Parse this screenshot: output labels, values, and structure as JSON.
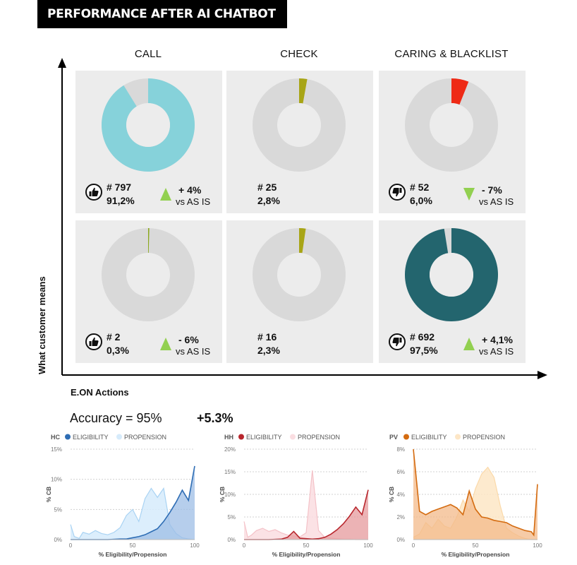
{
  "header": {
    "title": "PERFORMANCE AFTER AI CHATBOT"
  },
  "columns": [
    "CALL",
    "CHECK",
    "CARING & BLACKLIST"
  ],
  "y_axis_label": "What customer means",
  "panels": [
    {
      "count": "# 797",
      "pct": "91,2%",
      "share": 0.912,
      "color": "#86d2da",
      "icon": "thumbs-up-icon",
      "delta": "+ 4%",
      "delta_sub": "vs AS IS",
      "arrow": "up"
    },
    {
      "count": "# 25",
      "pct": "2,8%",
      "share": 0.028,
      "color": "#a8a516",
      "icon": "",
      "delta": "",
      "delta_sub": "",
      "arrow": ""
    },
    {
      "count": "# 52",
      "pct": "6,0%",
      "share": 0.06,
      "color": "#ee2a16",
      "icon": "thumbs-down-icon",
      "delta": "- 7%",
      "delta_sub": "vs AS IS",
      "arrow": "down"
    },
    {
      "count": "# 2",
      "pct": "0,3%",
      "share": 0.003,
      "color": "#8aa81c",
      "icon": "thumbs-up-icon",
      "delta": "- 6%",
      "delta_sub": "vs AS IS",
      "arrow": "up"
    },
    {
      "count": "# 16",
      "pct": "2,3%",
      "share": 0.023,
      "color": "#a8a516",
      "icon": "",
      "delta": "",
      "delta_sub": "",
      "arrow": ""
    },
    {
      "count": "# 692",
      "pct": "97,5%",
      "share": 0.975,
      "color": "#23656e",
      "icon": "thumbs-down-icon",
      "delta": "+ 4,1%",
      "delta_sub": "vs AS IS",
      "arrow": "up"
    }
  ],
  "colors": {
    "donut_bg": "#d9d9d9",
    "arrow_green": "#92d050",
    "panel_bg": "#ececec"
  },
  "eon": {
    "title": "E.ON Actions",
    "accuracy": "Accuracy = 95%",
    "accuracy_delta": "+5.3%"
  },
  "chart_data": [
    {
      "type": "area",
      "title": "HC",
      "xlabel": "% Eligibility/Propension",
      "ylabel": "% CB",
      "xlim": [
        0,
        100
      ],
      "ylim": [
        0,
        15
      ],
      "xticks": [
        "0",
        "50",
        "100"
      ],
      "yticks": [
        "0%",
        "5%",
        "10%",
        "15%"
      ],
      "series": [
        {
          "name": "ELIGIBILITY",
          "color": "#2e6db4",
          "fill": "#9dbde6",
          "x": [
            0,
            5,
            10,
            20,
            30,
            40,
            45,
            50,
            55,
            60,
            65,
            70,
            75,
            80,
            85,
            90,
            95,
            100
          ],
          "y": [
            0,
            0,
            0,
            0,
            0,
            0.1,
            0.1,
            0.3,
            0.5,
            0.8,
            1.3,
            1.8,
            3,
            4.5,
            6.2,
            8.2,
            6.5,
            12.2
          ]
        },
        {
          "name": "PROPENSION",
          "color": "#a9d3f3",
          "fill": "#d6ebfb",
          "x": [
            0,
            3,
            7,
            10,
            15,
            20,
            25,
            30,
            35,
            40,
            45,
            50,
            55,
            60,
            65,
            70,
            75,
            80,
            85,
            90,
            95,
            100
          ],
          "y": [
            2.5,
            0.5,
            0.2,
            1.2,
            0.9,
            1.5,
            1.0,
            0.8,
            1.2,
            2.0,
            4.0,
            5.0,
            3.0,
            6.8,
            8.5,
            7.0,
            8.5,
            2.5,
            1.0,
            0.3,
            0.1,
            0
          ]
        }
      ]
    },
    {
      "type": "area",
      "title": "HH",
      "xlabel": "% Eligibility/Propension",
      "ylabel": "% CB",
      "xlim": [
        0,
        100
      ],
      "ylim": [
        0,
        20
      ],
      "xticks": [
        "0",
        "50",
        "100"
      ],
      "yticks": [
        "0%",
        "5%",
        "10%",
        "15%",
        "20%"
      ],
      "series": [
        {
          "name": "ELIGIBILITY",
          "color": "#b8262d",
          "fill": "#e59a9c",
          "x": [
            0,
            10,
            20,
            30,
            35,
            40,
            45,
            50,
            55,
            60,
            65,
            70,
            75,
            80,
            85,
            90,
            95,
            100
          ],
          "y": [
            0,
            0,
            0,
            0.1,
            0.5,
            1.8,
            0.3,
            0.2,
            0.1,
            0.2,
            0.5,
            1.2,
            2.2,
            3.5,
            5.2,
            7.2,
            5.5,
            11
          ]
        },
        {
          "name": "PROPENSION",
          "color": "#f4c2c8",
          "fill": "#fadde1",
          "x": [
            0,
            3,
            6,
            10,
            15,
            20,
            25,
            30,
            35,
            40,
            45,
            50,
            55,
            60,
            65,
            70,
            75,
            80,
            85,
            90,
            95,
            100
          ],
          "y": [
            4,
            0.5,
            1,
            2,
            2.5,
            1.8,
            2.2,
            1.5,
            1.0,
            0.8,
            0.6,
            1.5,
            15.3,
            2.0,
            0.5,
            0.3,
            0.2,
            0.1,
            0.1,
            0,
            0,
            0
          ]
        }
      ]
    },
    {
      "type": "area",
      "title": "PV",
      "xlabel": "% Eligibility/Propension",
      "ylabel": "% CB",
      "xlim": [
        0,
        100
      ],
      "ylim": [
        0,
        8
      ],
      "xticks": [
        "0",
        "50",
        "100"
      ],
      "yticks": [
        "0%",
        "2%",
        "4%",
        "6%",
        "8%"
      ],
      "series": [
        {
          "name": "ELIGIBILITY",
          "color": "#d46b10",
          "fill": "#f3b98a",
          "x": [
            0,
            5,
            10,
            15,
            20,
            25,
            30,
            35,
            40,
            45,
            50,
            55,
            60,
            65,
            70,
            75,
            80,
            85,
            90,
            95,
            97,
            100
          ],
          "y": [
            8,
            2.5,
            2.2,
            2.5,
            2.7,
            2.9,
            3.1,
            2.8,
            2.2,
            4.3,
            2.7,
            2.0,
            1.9,
            1.7,
            1.6,
            1.5,
            1.2,
            1.0,
            0.8,
            0.7,
            0.4,
            4.9
          ]
        },
        {
          "name": "PROPENSION",
          "color": "#fbd9a9",
          "fill": "#fde6c6",
          "x": [
            0,
            5,
            10,
            15,
            20,
            25,
            30,
            35,
            40,
            45,
            50,
            55,
            60,
            65,
            70,
            75,
            80,
            85,
            90,
            95,
            100
          ],
          "y": [
            0.2,
            0.5,
            1.5,
            1.0,
            1.8,
            1.2,
            1.0,
            2.0,
            3.5,
            2.5,
            4.5,
            5.8,
            6.4,
            5.5,
            3.0,
            1.0,
            0.6,
            0.3,
            0.1,
            0,
            0
          ]
        }
      ]
    }
  ]
}
